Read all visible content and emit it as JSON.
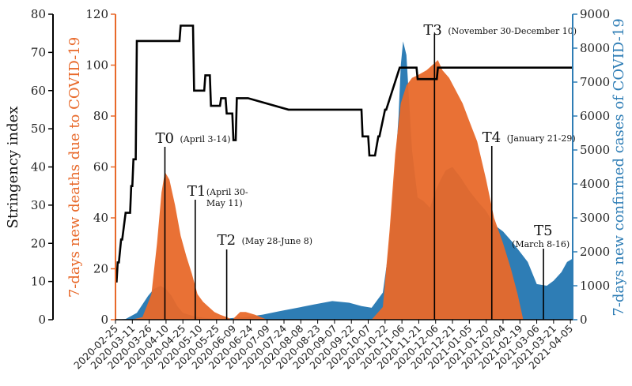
{
  "chart_data": {
    "type": "area",
    "xlabel": "",
    "ylabels": {
      "left_outer": "Stringency index",
      "left_inner": "7-days new deaths due to COVID-19",
      "right": "7-days new confirmed cases of COVID-19"
    },
    "axes": {
      "stringency": {
        "range": [
          0,
          80
        ],
        "ticks": [
          "0",
          "10",
          "20",
          "30",
          "40",
          "50",
          "60",
          "70",
          "80"
        ],
        "color": "#000000"
      },
      "deaths": {
        "range": [
          0,
          120
        ],
        "ticks": [
          "0",
          "20",
          "40",
          "60",
          "80",
          "100",
          "120"
        ],
        "color": "#E8692A"
      },
      "cases": {
        "range": [
          0,
          9000
        ],
        "ticks": [
          "0",
          "1000",
          "2000",
          "3000",
          "4000",
          "5000",
          "6000",
          "7000",
          "8000",
          "9000"
        ],
        "color": "#2E7DB5"
      }
    },
    "x_tick_labels": [
      "2020-02-25",
      "2020-03-11",
      "2020-03-26",
      "2020-04-10",
      "2020-04-25",
      "2020-05-10",
      "2020-05-25",
      "2020-06-09",
      "2020-06-24",
      "2020-07-09",
      "2020-07-24",
      "2020-08-08",
      "2020-08-23",
      "2020-09-07",
      "2020-09-22",
      "2020-10-07",
      "2020-10-22",
      "2020-11-06",
      "2020-11-21",
      "2020-12-06",
      "2020-12-21",
      "2021-01-05",
      "2021-01-20",
      "2021-02-04",
      "2021-02-19",
      "2021-03-06",
      "2021-03-21",
      "2021-04-05"
    ],
    "series": [
      {
        "name": "7-days new confirmed cases of COVID-19",
        "kind": "area",
        "axis": "cases",
        "color": "#2E7DB5",
        "x": [
          "2020-02-25",
          "2020-03-05",
          "2020-03-15",
          "2020-03-25",
          "2020-03-30",
          "2020-04-05",
          "2020-04-10",
          "2020-04-15",
          "2020-04-20",
          "2020-04-25",
          "2020-05-05",
          "2020-05-15",
          "2020-05-25",
          "2020-06-05",
          "2020-06-20",
          "2020-07-05",
          "2020-07-20",
          "2020-08-05",
          "2020-08-20",
          "2020-09-05",
          "2020-09-20",
          "2020-10-01",
          "2020-10-10",
          "2020-10-20",
          "2020-10-25",
          "2020-10-30",
          "2020-11-03",
          "2020-11-05",
          "2020-11-07",
          "2020-11-10",
          "2020-11-15",
          "2020-11-20",
          "2020-11-25",
          "2020-12-01",
          "2020-12-06",
          "2020-12-10",
          "2020-12-15",
          "2020-12-21",
          "2020-12-28",
          "2021-01-05",
          "2021-01-12",
          "2021-01-20",
          "2021-01-27",
          "2021-02-04",
          "2021-02-12",
          "2021-02-19",
          "2021-02-26",
          "2021-03-06",
          "2021-03-15",
          "2021-03-21",
          "2021-03-28",
          "2021-04-02",
          "2021-04-07"
        ],
        "values": [
          0,
          20,
          200,
          700,
          900,
          1000,
          900,
          700,
          400,
          200,
          100,
          50,
          30,
          40,
          80,
          150,
          250,
          350,
          450,
          550,
          500,
          400,
          350,
          800,
          2000,
          4000,
          6000,
          7500,
          8200,
          7800,
          5000,
          3600,
          3500,
          3300,
          3800,
          4100,
          4400,
          4500,
          4200,
          3800,
          3500,
          3200,
          2800,
          2600,
          2300,
          2000,
          1700,
          1050,
          1000,
          1150,
          1400,
          1700,
          1800
        ]
      },
      {
        "name": "7-days new deaths due to COVID-19",
        "kind": "area",
        "axis": "deaths",
        "color": "#E8692A",
        "x": [
          "2020-02-25",
          "2020-03-10",
          "2020-03-20",
          "2020-03-28",
          "2020-04-02",
          "2020-04-06",
          "2020-04-09",
          "2020-04-13",
          "2020-04-18",
          "2020-04-23",
          "2020-04-28",
          "2020-05-03",
          "2020-05-08",
          "2020-05-13",
          "2020-05-18",
          "2020-05-23",
          "2020-05-28",
          "2020-06-03",
          "2020-06-08",
          "2020-06-15",
          "2020-06-20",
          "2020-06-28",
          "2020-07-09",
          "2020-10-10",
          "2020-10-20",
          "2020-10-26",
          "2020-10-31",
          "2020-11-05",
          "2020-11-10",
          "2020-11-15",
          "2020-11-20",
          "2020-11-28",
          "2020-12-03",
          "2020-12-08",
          "2020-12-12",
          "2020-12-18",
          "2020-12-24",
          "2020-12-30",
          "2021-01-05",
          "2021-01-12",
          "2021-01-20",
          "2021-01-27",
          "2021-02-04",
          "2021-02-11",
          "2021-02-17",
          "2021-02-22"
        ],
        "values": [
          0,
          0,
          1,
          10,
          30,
          50,
          58,
          55,
          45,
          33,
          25,
          18,
          10,
          7,
          5,
          3,
          2,
          1,
          0,
          3,
          3,
          2,
          0,
          0,
          5,
          35,
          65,
          85,
          92,
          95,
          96,
          98,
          100,
          102,
          98,
          95,
          90,
          85,
          78,
          70,
          55,
          40,
          30,
          20,
          10,
          0
        ]
      }
    ],
    "lines": [
      {
        "name": "Stringency index",
        "axis": "stringency",
        "color": "#000000",
        "x": [
          "2020-02-25",
          "2020-02-26",
          "2020-02-27",
          "2020-02-28",
          "2020-03-01",
          "2020-03-02",
          "2020-03-05",
          "2020-03-06",
          "2020-03-09",
          "2020-03-10",
          "2020-03-11",
          "2020-03-12",
          "2020-03-14",
          "2020-03-15",
          "2020-04-13",
          "2020-04-14",
          "2020-04-22",
          "2020-04-23",
          "2020-05-04",
          "2020-05-05",
          "2020-05-14",
          "2020-05-15",
          "2020-05-19",
          "2020-05-20",
          "2020-05-28",
          "2020-05-29",
          "2020-06-02",
          "2020-06-03",
          "2020-06-08",
          "2020-06-09",
          "2020-06-11",
          "2020-06-12",
          "2020-06-21",
          "2020-06-22",
          "2020-07-28",
          "2020-07-29",
          "2020-10-01",
          "2020-10-02",
          "2020-10-07",
          "2020-10-08",
          "2020-10-12",
          "2020-10-13",
          "2020-10-16",
          "2020-10-17",
          "2020-10-22",
          "2020-10-23",
          "2020-11-04",
          "2020-11-05",
          "2020-11-19",
          "2020-11-20",
          "2020-12-07",
          "2020-12-08",
          "2021-04-07"
        ],
        "values": [
          10,
          10,
          15,
          15,
          21,
          21,
          28,
          28,
          28,
          35,
          35,
          42,
          42,
          73,
          73,
          73,
          73,
          77,
          77,
          60,
          60,
          64,
          64,
          56,
          56,
          58,
          58,
          54,
          54,
          47,
          47,
          58,
          58,
          58,
          55,
          55,
          55,
          48,
          48,
          43,
          43,
          43,
          48,
          48,
          55,
          55,
          66,
          66,
          66,
          63,
          63,
          66,
          66
        ]
      }
    ],
    "annotations": [
      {
        "label": "T0",
        "detail": "(April 3-14)",
        "x": "2020-04-09"
      },
      {
        "label": "T1",
        "detail_lines": [
          "(April 30-",
          "May 11)"
        ],
        "x": "2020-05-06"
      },
      {
        "label": "T2",
        "detail": "(May 28-June 8)",
        "x": "2020-06-03"
      },
      {
        "label": "T3",
        "detail": "(November 30-December 10)",
        "x": "2020-12-05"
      },
      {
        "label": "T4",
        "detail": "(January 21-29)",
        "x": "2021-01-25"
      },
      {
        "label": "T5",
        "detail": "(March 8-16)",
        "x": "2021-03-12"
      }
    ]
  }
}
